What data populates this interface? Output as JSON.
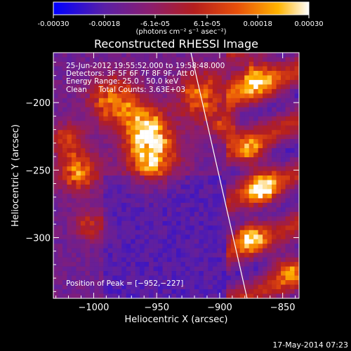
{
  "colorbar": {
    "ticks": [
      "-0.00030",
      "-0.00018",
      "-6.1e-05",
      "6.1e-05",
      "0.00018",
      "0.00030"
    ],
    "tick_values": [
      -0.0003,
      -0.00018,
      -6.1e-05,
      6.1e-05,
      0.00018,
      0.0003
    ],
    "range": [
      -0.0003,
      0.0003
    ],
    "units_label": "(photons cm⁻² s⁻¹ asec⁻²)",
    "colors": [
      "#0000ff",
      "#5a1fa6",
      "#8c1e6e",
      "#b41e1e",
      "#e8500a",
      "#ffb400",
      "#ffffff"
    ]
  },
  "chart_data": {
    "type": "heatmap",
    "title": "Reconstructed RHESSI Image",
    "xlabel": "Heliocentric X (arcsec)",
    "ylabel": "Heliocentric Y (arcsec)",
    "xlim": [
      -1032,
      -837
    ],
    "ylim": [
      -345,
      -163
    ],
    "xticks": [
      -1000,
      -950,
      -900,
      -850
    ],
    "yticks": [
      -200,
      -250,
      -300
    ],
    "x_tick_labels": [
      "−1000",
      "−950",
      "−900",
      "−850"
    ],
    "y_tick_labels": [
      "−200",
      "−250",
      "−300"
    ],
    "peak": {
      "x": -952,
      "y": -227
    },
    "annotations": {
      "line1": "25-Jun-2012 19:55:52.000 to 19:58:48.000",
      "line2": "Detectors: 3F 5F 6F 7F 8F 9F, Att 0",
      "line3": "Energy Range: 25.0 - 50.0 keV",
      "line4": "Clean     Total Counts: 3.63E+03",
      "peak_label": "Position of Peak = [−952,−227]"
    }
  },
  "footer": {
    "timestamp": "17-May-2014 07:23"
  }
}
